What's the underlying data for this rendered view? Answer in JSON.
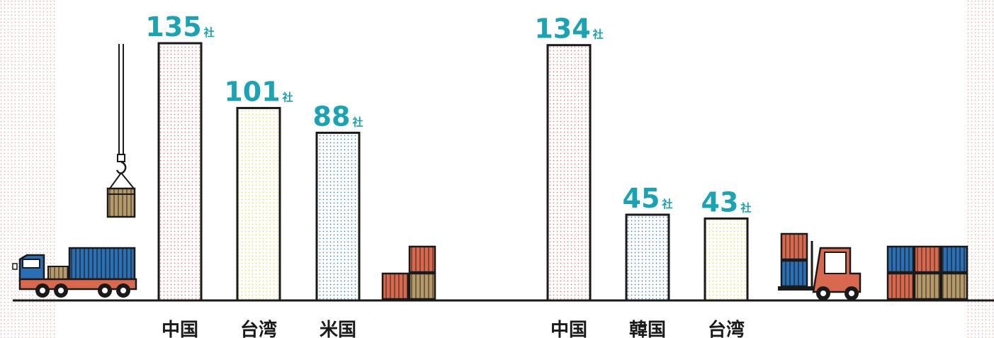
{
  "colors": {
    "accent": "#1aa3b4",
    "outline": "#1a1a1a",
    "pink_dot": "#e8837a",
    "yellow_dot": "#e7de5a",
    "blue_dot": "#3a86c8",
    "container_red": "#d9694e",
    "container_blue": "#2a6fb3",
    "crate_tan": "#b79a6a"
  },
  "chart_data": [
    {
      "type": "bar",
      "categories": [
        "中国",
        "台湾",
        "米国"
      ],
      "values": [
        135,
        101,
        88
      ],
      "value_labels": [
        "135",
        "101",
        "88"
      ],
      "unit": "社",
      "patterns": [
        "pink",
        "yellow",
        "blue"
      ]
    },
    {
      "type": "bar",
      "categories": [
        "中国",
        "韓国",
        "台湾"
      ],
      "values": [
        134,
        45,
        43
      ],
      "value_labels": [
        "134",
        "45",
        "43"
      ],
      "unit": "社",
      "patterns": [
        "pink",
        "blue",
        "yellow"
      ]
    }
  ],
  "icons": [
    "crane-hook-crate-icon",
    "truck-icon",
    "stacked-containers-icon",
    "forklift-icon",
    "container-stack-icon"
  ]
}
